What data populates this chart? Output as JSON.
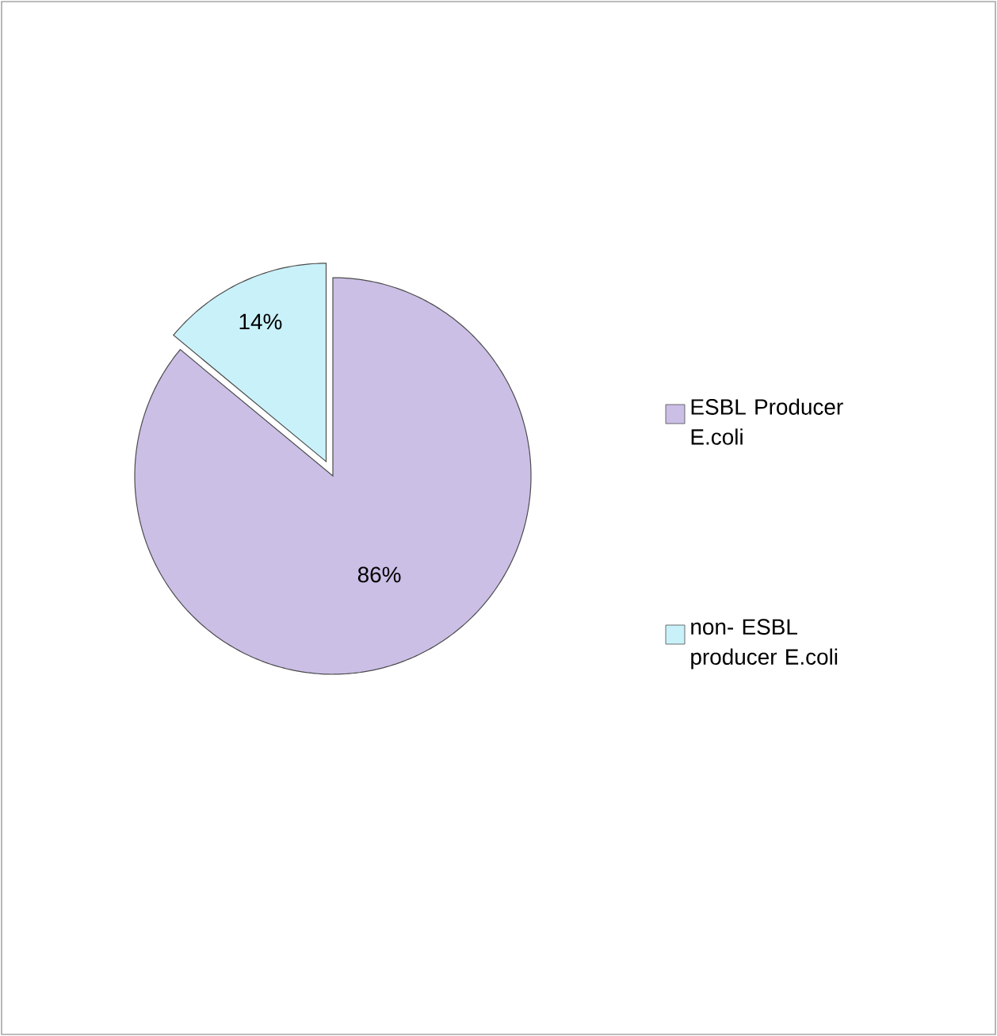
{
  "chart_data": {
    "type": "pie",
    "categories": [
      "ESBL Producer E.coli",
      "non- ESBL producer E.coli"
    ],
    "values": [
      86,
      14
    ],
    "colors": [
      "#cbbfe6",
      "#c9f1f9"
    ],
    "value_labels": [
      "86%",
      "14%"
    ],
    "legend": "right"
  }
}
